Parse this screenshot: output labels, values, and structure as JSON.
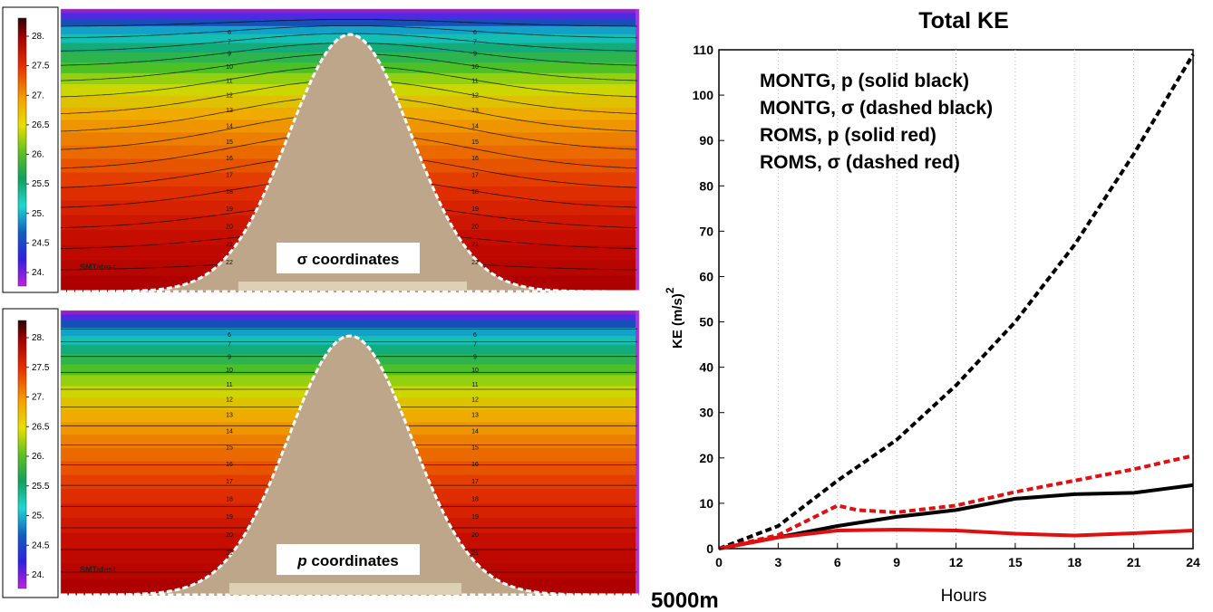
{
  "chart_data": [
    {
      "type": "heatmap",
      "panel": "top",
      "colorbar_ticks": [
        "28.",
        "27.5",
        "27.",
        "26.5",
        "26.",
        "25.5",
        "25.",
        "24.5",
        "24."
      ],
      "left_contour_labels": [
        "6",
        "7",
        "9",
        "10",
        "11",
        "12",
        "13",
        "14",
        "15",
        "16",
        "17",
        "18",
        "19",
        "20",
        "21",
        "22"
      ],
      "right_contour_labels": [
        "6",
        "7",
        "9",
        "10",
        "11",
        "12",
        "13",
        "14",
        "15",
        "16",
        "17",
        "18",
        "19",
        "20",
        "21",
        "22"
      ],
      "run_label": "SMTatest",
      "annotation": "σ coordinates"
    },
    {
      "type": "heatmap",
      "panel": "bottom",
      "colorbar_ticks": [
        "28.",
        "27.5",
        "27.",
        "26.5",
        "26.",
        "25.5",
        "25.",
        "24.5",
        "24."
      ],
      "left_contour_labels": [
        "6",
        "7",
        "9",
        "10",
        "11",
        "12",
        "13",
        "14",
        "15",
        "16",
        "17",
        "18",
        "19",
        "20",
        "21"
      ],
      "right_contour_labels": [
        "6",
        "7",
        "9",
        "10",
        "11",
        "12",
        "13",
        "14",
        "15",
        "16",
        "17",
        "18",
        "19",
        "20",
        "21"
      ],
      "run_label": "SMTatest",
      "annotation_prefix": "p",
      "annotation_suffix": " coordinates"
    },
    {
      "type": "line",
      "title": "Total KE",
      "xlabel": "Hours",
      "ylabel": "KE (m/s)",
      "ylabel_superscript": "2",
      "xlim": [
        0,
        24
      ],
      "ylim": [
        0,
        110
      ],
      "xticks": [
        0,
        3,
        6,
        9,
        12,
        15,
        18,
        21,
        24
      ],
      "yticks": [
        0,
        10,
        20,
        30,
        40,
        50,
        60,
        70,
        80,
        90,
        100,
        110
      ],
      "grid": "vertical dotted",
      "legend": [
        "MONTG, p (solid black)",
        "MONTG, σ (dashed black)",
        "ROMS, p (solid red)",
        "ROMS, σ (dashed red)"
      ],
      "series": [
        {
          "name": "MONTG, p (solid black)",
          "color": "#000000",
          "dash": false,
          "x": [
            0,
            3,
            6,
            9,
            12,
            15,
            18,
            21,
            24
          ],
          "y": [
            0,
            2.5,
            5,
            7,
            8.5,
            11,
            12,
            12.3,
            14
          ]
        },
        {
          "name": "MONTG, σ (dashed black)",
          "color": "#000000",
          "dash": true,
          "x": [
            0,
            3,
            6,
            9,
            12,
            15,
            18,
            21,
            24
          ],
          "y": [
            0,
            5,
            15,
            24,
            36,
            50,
            67,
            87,
            109
          ]
        },
        {
          "name": "ROMS, p (solid red)",
          "color": "#e01010",
          "dash": false,
          "x": [
            0,
            3,
            6,
            9,
            12,
            15,
            18,
            21,
            24
          ],
          "y": [
            0,
            2.5,
            4,
            4.2,
            4,
            3.3,
            2.9,
            3.4,
            4
          ]
        },
        {
          "name": "ROMS, σ (dashed red)",
          "color": "#e01010",
          "dash": true,
          "x": [
            0,
            3,
            6,
            7,
            9,
            12,
            15,
            18,
            21,
            24
          ],
          "y": [
            0,
            3,
            9.5,
            8.5,
            8,
            9.5,
            12.5,
            15,
            17.5,
            20.5
          ]
        }
      ]
    }
  ],
  "depth_label": "5000m",
  "colors": {
    "terrain": "#bea68a",
    "bottom_pad": "#ddd0b4",
    "red_line": "#e01010"
  }
}
